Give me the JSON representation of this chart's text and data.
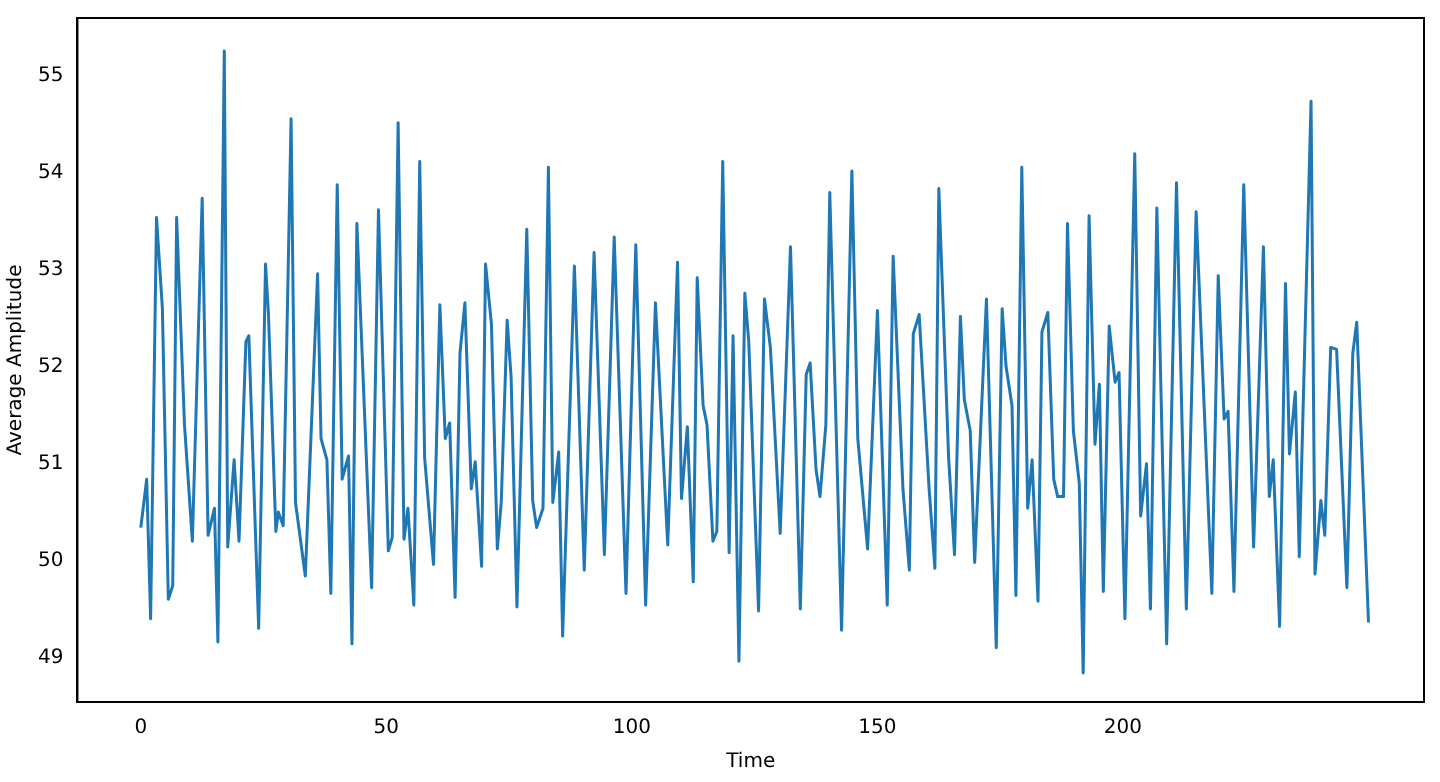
{
  "chart_data": {
    "type": "line",
    "xlabel": "Time",
    "ylabel": "Average Amplitude",
    "grid": false,
    "legend": false,
    "marker": "none",
    "line_style": "solid",
    "xlim": [
      -12.9,
      261.3
    ],
    "ylim": [
      48.54,
      55.6
    ],
    "xticks": [
      0,
      50,
      100,
      150,
      200
    ],
    "yticks": [
      49,
      50,
      51,
      52,
      53,
      54,
      55
    ],
    "series": [
      {
        "color": "#1f77b4",
        "x": [
          0,
          1.2,
          2,
          3.2,
          4.4,
          5.6,
          6.5,
          7.3,
          8.9,
          10.5,
          12.5,
          13.7,
          15,
          15.7,
          17,
          17.7,
          19,
          20,
          21.4,
          22,
          24,
          25.4,
          26,
          27.5,
          28,
          29,
          30.6,
          31.5,
          33.5,
          36,
          36.7,
          37.9,
          38.7,
          40,
          41,
          42.3,
          43,
          44,
          47,
          48.4,
          50.4,
          51.2,
          52.4,
          53.6,
          54.4,
          55.6,
          56.8,
          57.8,
          59.6,
          60.9,
          62,
          62.9,
          64,
          65,
          66,
          67.3,
          68.1,
          69.4,
          70.2,
          71.4,
          72.6,
          73.4,
          74.6,
          75.4,
          76.6,
          78.6,
          79.8,
          80.6,
          81.9,
          83,
          83.9,
          85.1,
          85.9,
          88.3,
          90.3,
          92.3,
          94.4,
          96.4,
          98.8,
          100.8,
          102.8,
          104.8,
          107.3,
          109.3,
          110.1,
          111.3,
          112.5,
          113.3,
          114.5,
          115.3,
          116.5,
          117.3,
          118.5,
          119.8,
          120.6,
          121.8,
          123,
          123.8,
          125.8,
          127,
          128.2,
          130.2,
          132.3,
          134.3,
          135.5,
          136.3,
          137.5,
          138.3,
          139.5,
          140.3,
          142.7,
          144.8,
          146,
          148,
          150,
          152,
          153.2,
          155.2,
          156.5,
          157.3,
          158.5,
          160.5,
          161.7,
          162.5,
          164.5,
          165.7,
          166.9,
          167.7,
          168.9,
          169.8,
          172.2,
          174.2,
          175.4,
          176.2,
          177.4,
          178.2,
          179.4,
          180.6,
          181.5,
          182.7,
          183.5,
          184.7,
          185.9,
          186.7,
          187.9,
          188.7,
          189.9,
          191.1,
          191.9,
          193.1,
          194.3,
          195.2,
          196,
          197.2,
          198.4,
          199.2,
          200.4,
          202.4,
          203.6,
          204.8,
          205.6,
          206.9,
          208.9,
          210.9,
          212.9,
          214.9,
          218.1,
          219.4,
          220.6,
          221.4,
          222.6,
          224.6,
          226.6,
          228.6,
          229.8,
          230.6,
          231.9,
          233.1,
          233.9,
          235.1,
          235.9,
          238.3,
          239.1,
          240.3,
          241.1,
          242.3,
          243.5,
          245.6,
          246.8,
          247.6,
          250
        ],
        "values": [
          50.34,
          50.84,
          49.4,
          53.54,
          52.6,
          49.6,
          49.74,
          53.54,
          51.4,
          50.2,
          53.74,
          50.26,
          50.54,
          49.16,
          55.26,
          50.14,
          51.04,
          50.2,
          52.26,
          52.32,
          49.3,
          53.06,
          52.54,
          50.3,
          50.5,
          50.36,
          54.56,
          50.6,
          49.84,
          52.96,
          51.26,
          51.04,
          49.66,
          53.88,
          50.84,
          51.08,
          49.14,
          53.48,
          49.72,
          53.62,
          50.1,
          50.24,
          54.52,
          50.22,
          50.54,
          49.54,
          54.12,
          51.06,
          49.96,
          52.64,
          51.26,
          51.42,
          49.62,
          52.14,
          52.66,
          50.74,
          51.02,
          49.94,
          53.06,
          52.44,
          50.12,
          50.6,
          52.48,
          51.9,
          49.52,
          53.42,
          50.62,
          50.34,
          50.54,
          54.06,
          50.6,
          51.12,
          49.22,
          53.04,
          49.9,
          53.18,
          50.06,
          53.34,
          49.66,
          53.26,
          49.54,
          52.66,
          50.16,
          53.08,
          50.64,
          51.38,
          49.78,
          52.92,
          51.6,
          51.4,
          50.2,
          50.3,
          54.12,
          50.08,
          52.32,
          48.96,
          52.76,
          52.26,
          49.48,
          52.7,
          52.2,
          50.28,
          53.24,
          49.5,
          51.92,
          52.04,
          50.94,
          50.66,
          51.4,
          53.8,
          49.28,
          54.02,
          51.26,
          50.12,
          52.58,
          49.54,
          53.14,
          50.74,
          49.9,
          52.34,
          52.54,
          50.76,
          49.92,
          53.84,
          51.06,
          50.06,
          52.52,
          51.66,
          51.34,
          49.98,
          52.7,
          49.1,
          52.6,
          52.0,
          51.6,
          49.64,
          54.06,
          50.54,
          51.04,
          49.58,
          52.36,
          52.56,
          50.84,
          50.66,
          50.66,
          53.48,
          51.34,
          50.8,
          48.84,
          53.56,
          51.2,
          51.82,
          49.68,
          52.42,
          51.84,
          51.94,
          49.4,
          54.2,
          50.46,
          51.0,
          49.5,
          53.64,
          49.14,
          53.9,
          49.5,
          53.6,
          49.66,
          52.94,
          51.46,
          51.54,
          49.68,
          53.88,
          50.14,
          53.24,
          50.66,
          51.04,
          49.32,
          52.86,
          51.1,
          51.74,
          50.04,
          54.74,
          49.86,
          50.62,
          50.26,
          52.2,
          52.18,
          49.72,
          52.14,
          52.46,
          49.36
        ]
      }
    ]
  }
}
